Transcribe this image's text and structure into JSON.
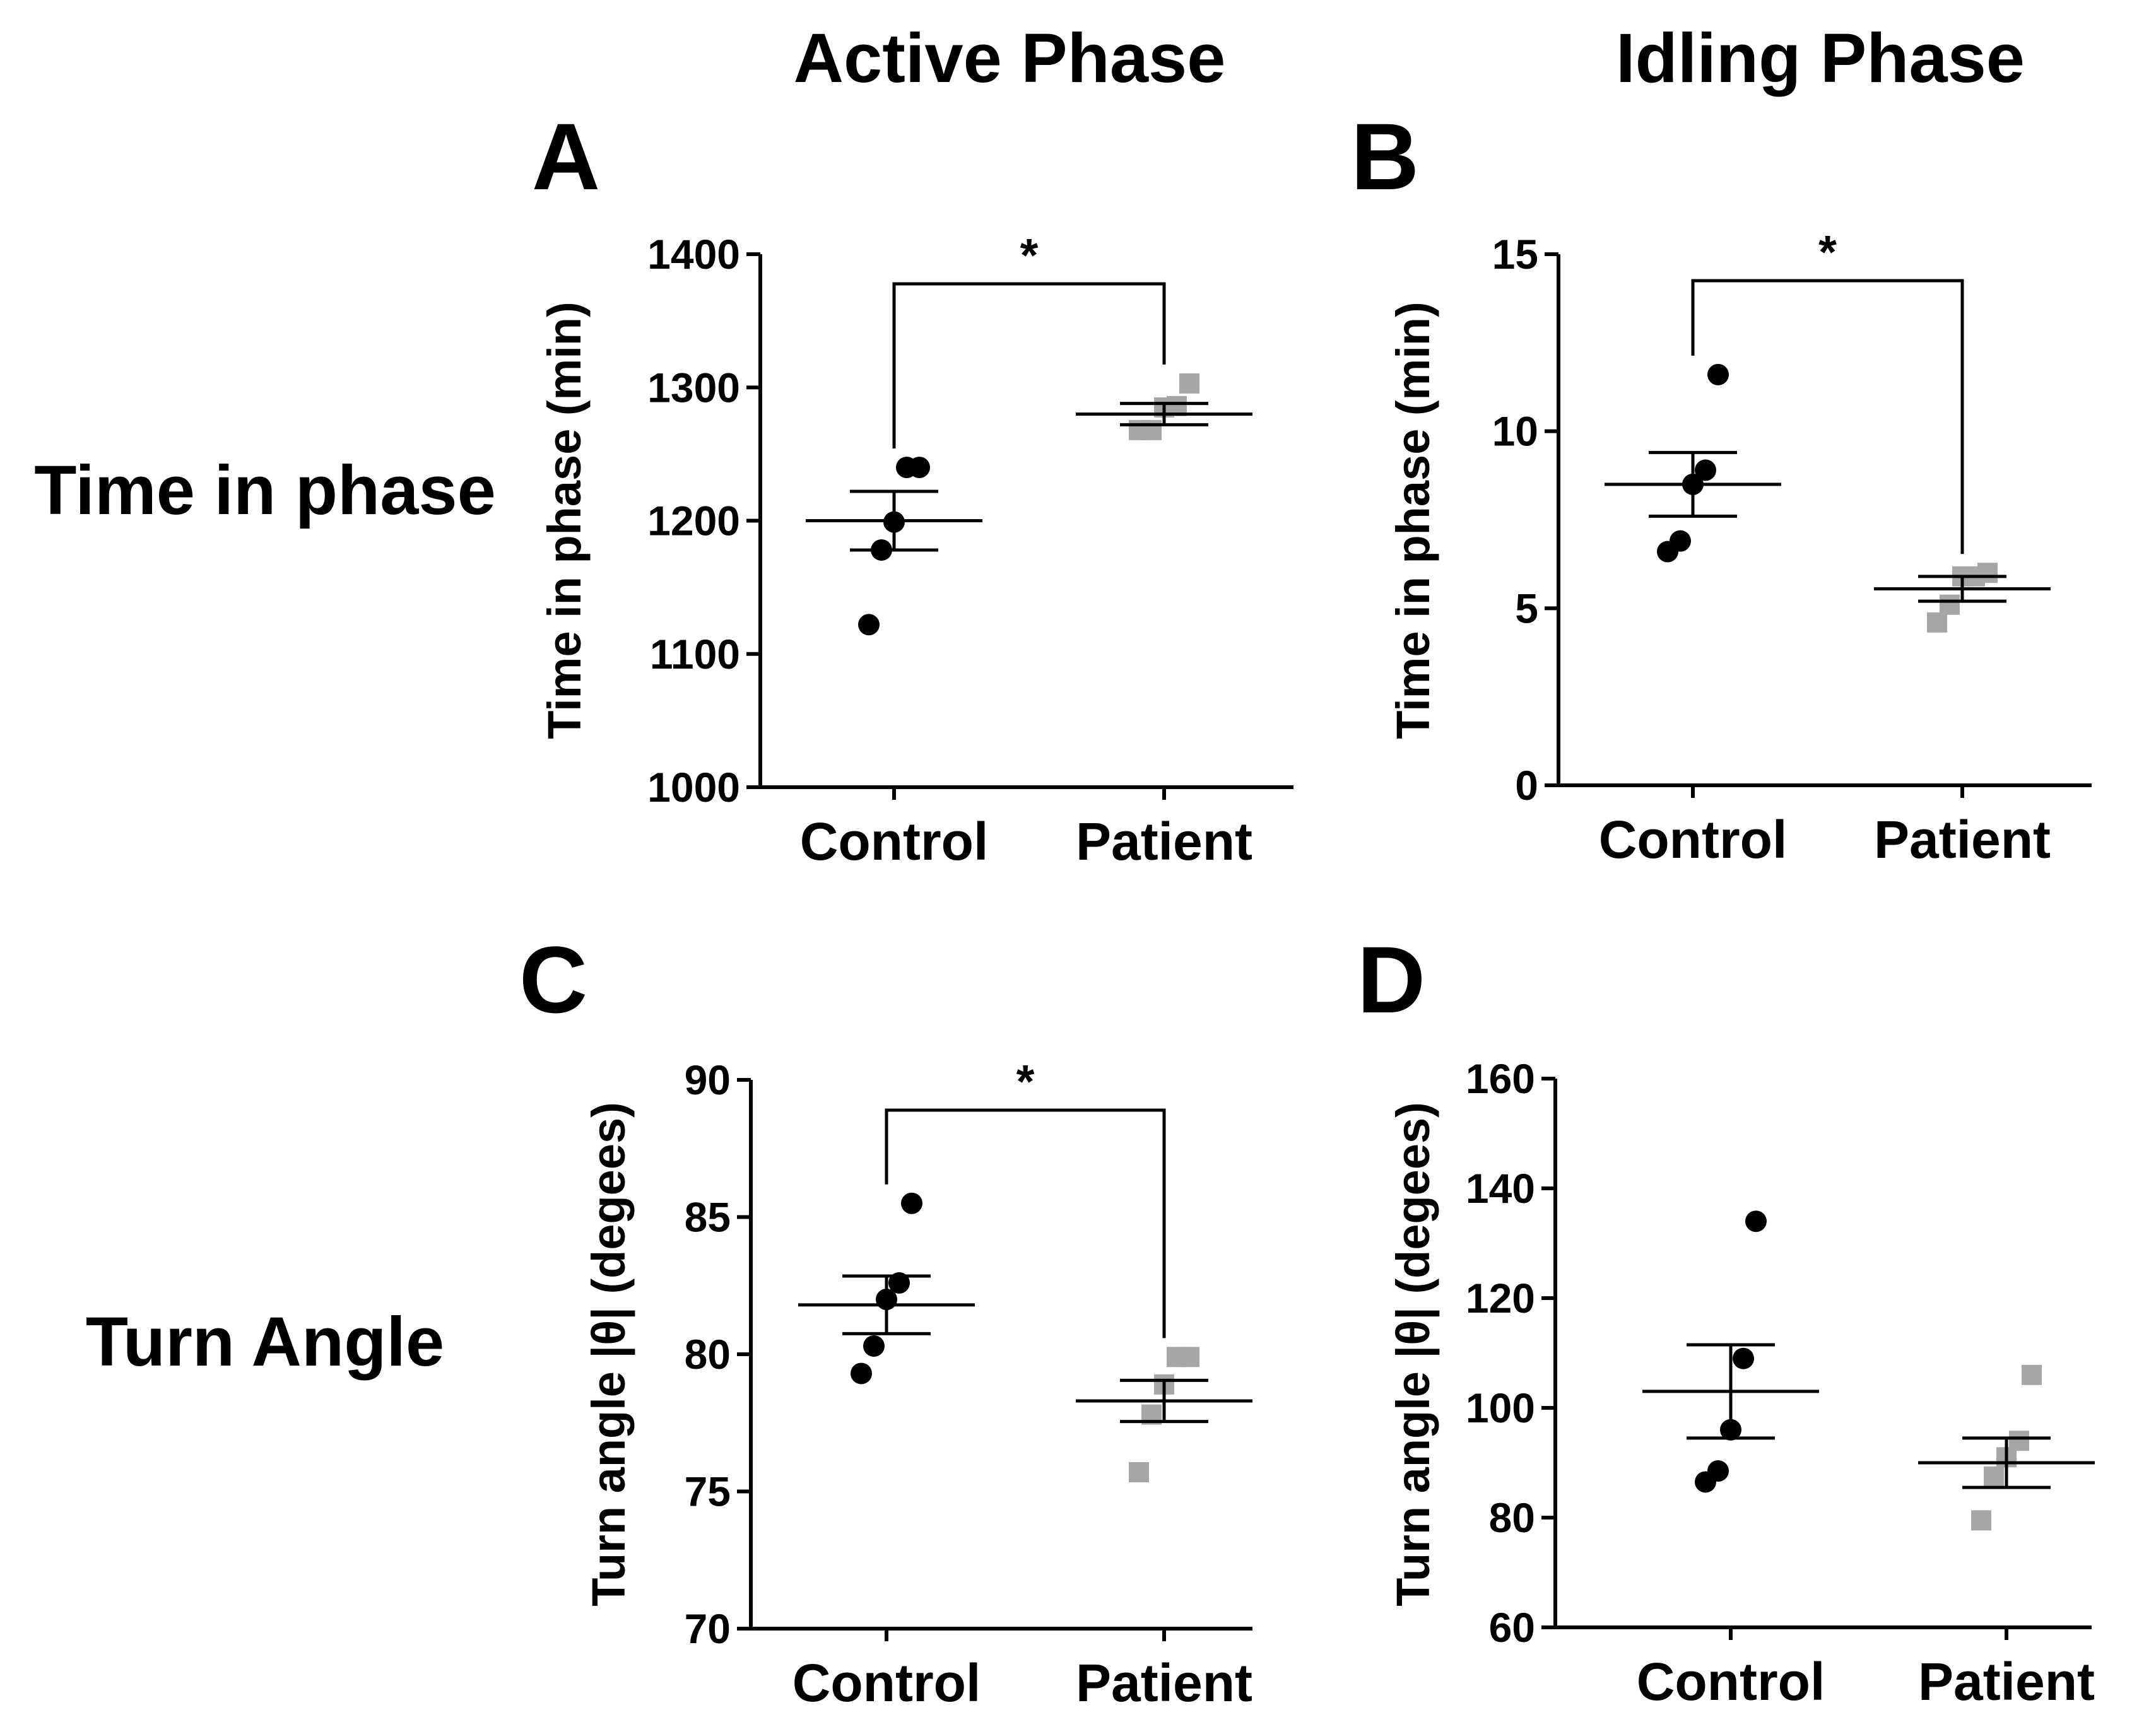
{
  "column_titles": [
    "Active Phase",
    "Idling Phase"
  ],
  "row_labels": [
    "Time in phase",
    "Turn Angle"
  ],
  "colors": {
    "control": "#000000",
    "patient": "#a6a6a6"
  },
  "chart_data": [
    {
      "panel": "A",
      "type": "scatter",
      "ylabel": "Time in phase (min)",
      "categories": [
        "Control",
        "Patient"
      ],
      "ylim": [
        1000,
        1400
      ],
      "yticks": [
        "1000",
        "1100",
        "1200",
        "1300",
        "1400"
      ],
      "series": [
        {
          "group": "Control",
          "marker": "circle",
          "values": [
            1122,
            1178,
            1199,
            1240,
            1240
          ],
          "mean": 1200,
          "sem": 22
        },
        {
          "group": "Patient",
          "marker": "square",
          "values": [
            1268,
            1268,
            1285,
            1286,
            1303
          ],
          "mean": 1280,
          "sem": 8
        }
      ],
      "significance": "*"
    },
    {
      "panel": "B",
      "type": "scatter",
      "ylabel": "Time in phase (min)",
      "categories": [
        "Control",
        "Patient"
      ],
      "ylim": [
        0,
        15
      ],
      "yticks": [
        "0",
        "5",
        "10",
        "15"
      ],
      "series": [
        {
          "group": "Control",
          "marker": "circle",
          "values": [
            6.6,
            6.9,
            8.5,
            8.9,
            11.6
          ],
          "mean": 8.5,
          "sem": 0.9
        },
        {
          "group": "Patient",
          "marker": "square",
          "values": [
            4.6,
            5.1,
            5.9,
            5.9,
            6.0
          ],
          "mean": 5.55,
          "sem": 0.35
        }
      ],
      "significance": "*"
    },
    {
      "panel": "C",
      "type": "scatter",
      "ylabel": "Turn angle |θ| (degees)",
      "categories": [
        "Control",
        "Patient"
      ],
      "ylim": [
        70,
        90
      ],
      "yticks": [
        "70",
        "75",
        "80",
        "85",
        "90"
      ],
      "series": [
        {
          "group": "Control",
          "marker": "circle",
          "values": [
            79.3,
            80.3,
            82.0,
            82.6,
            85.5
          ],
          "mean": 81.8,
          "sem": 1.05
        },
        {
          "group": "Patient",
          "marker": "square",
          "values": [
            75.7,
            77.8,
            78.9,
            79.9,
            79.9
          ],
          "mean": 78.3,
          "sem": 0.75
        }
      ],
      "significance": "*"
    },
    {
      "panel": "D",
      "type": "scatter",
      "ylabel": "Turn angle |θ| (degees)",
      "categories": [
        "Control",
        "Patient"
      ],
      "ylim": [
        60,
        160
      ],
      "yticks": [
        "60",
        "80",
        "100",
        "120",
        "140",
        "160"
      ],
      "series": [
        {
          "group": "Control",
          "marker": "circle",
          "values": [
            86.5,
            88.5,
            96.0,
            109.0,
            134.0
          ],
          "mean": 103.0,
          "sem": 8.5
        },
        {
          "group": "Patient",
          "marker": "square",
          "values": [
            79.5,
            87.5,
            91.0,
            94.0,
            106.0
          ],
          "mean": 90.0,
          "sem": 4.5
        }
      ],
      "significance": ""
    }
  ]
}
